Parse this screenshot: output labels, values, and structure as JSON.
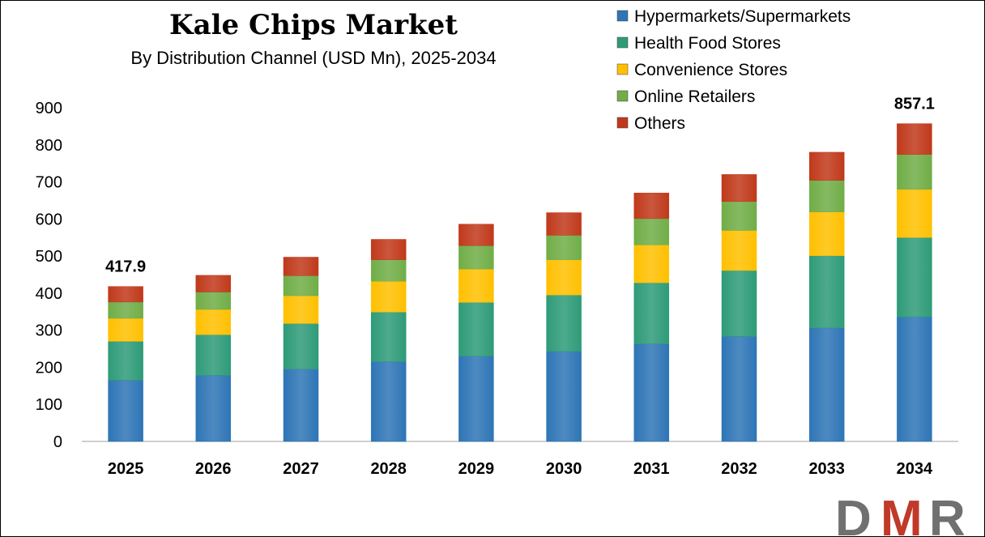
{
  "chart_data": {
    "type": "bar",
    "stacked": true,
    "title": "Kale Chips Market",
    "subtitle": "By Distribution Channel (USD Mn), 2025-2034",
    "categories": [
      "2025",
      "2026",
      "2027",
      "2028",
      "2029",
      "2030",
      "2031",
      "2032",
      "2033",
      "2034"
    ],
    "series": [
      {
        "name": "Hypermarkets/Supermarkets",
        "color": "#2E75B6",
        "values": [
          165,
          178,
          195,
          215,
          230,
          243,
          263,
          283,
          306,
          336
        ]
      },
      {
        "name": "Health Food Stores",
        "color": "#2E9B78",
        "values": [
          105,
          110,
          123,
          134,
          145,
          152,
          165,
          178,
          195,
          214
        ]
      },
      {
        "name": "Convenience Stores",
        "color": "#FFC000",
        "values": [
          62,
          68,
          75,
          83,
          90,
          95,
          102,
          108,
          118,
          130
        ]
      },
      {
        "name": "Online Retailers",
        "color": "#70AD47",
        "values": [
          44,
          47,
          54,
          58,
          63,
          66,
          71,
          78,
          85,
          94
        ]
      },
      {
        "name": "Others",
        "color": "#C0391B",
        "values": [
          41.9,
          45,
          50,
          55,
          58,
          61,
          69,
          73,
          76,
          83.1
        ]
      }
    ],
    "data_labels": [
      {
        "category": "2025",
        "text": "417.9"
      },
      {
        "category": "2034",
        "text": "857.1"
      }
    ],
    "yticks": [
      0,
      100,
      200,
      300,
      400,
      500,
      600,
      700,
      800,
      900
    ],
    "ylim": [
      0,
      900
    ],
    "xlabel": "",
    "ylabel": "",
    "grid": false,
    "legend_position": "top-right"
  },
  "logo": {
    "text": "DMR",
    "letter_d": "D",
    "letter_m": "M",
    "letter_r": "R",
    "color_gray": "#707070",
    "color_red": "#C0392B"
  }
}
